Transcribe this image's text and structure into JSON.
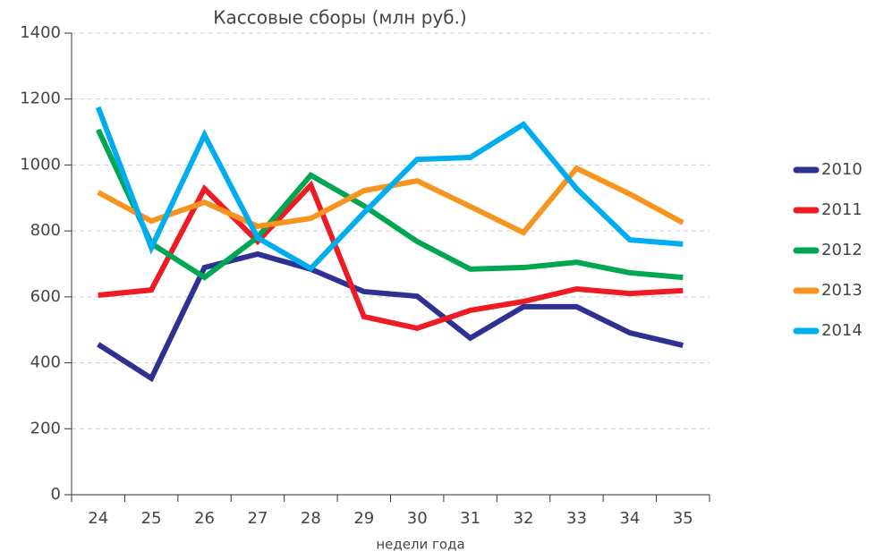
{
  "chart_data": {
    "type": "line",
    "title": "Кассовые сборы (млн руб.)",
    "x_label": "недели года",
    "categories": [
      "24",
      "25",
      "26",
      "27",
      "28",
      "29",
      "30",
      "31",
      "32",
      "33",
      "34",
      "35"
    ],
    "series": [
      {
        "name": "2010",
        "color": "#2e3192",
        "values": [
          456,
          353,
          689,
          730,
          684,
          616,
          602,
          475,
          570,
          570,
          491,
          453
        ]
      },
      {
        "name": "2011",
        "color": "#ed1c24",
        "values": [
          605,
          621,
          928,
          768,
          939,
          540,
          505,
          559,
          586,
          624,
          610,
          619
        ]
      },
      {
        "name": "2012",
        "color": "#00a651",
        "values": [
          1107,
          762,
          659,
          781,
          969,
          876,
          768,
          684,
          689,
          705,
          673,
          659
        ]
      },
      {
        "name": "2013",
        "color": "#f7941d",
        "values": [
          917,
          830,
          887,
          814,
          838,
          922,
          952,
          874,
          795,
          990,
          912,
          825
        ]
      },
      {
        "name": "2014",
        "color": "#00aeef",
        "values": [
          1175,
          749,
          1091,
          779,
          686,
          855,
          1017,
          1023,
          1123,
          928,
          773,
          760
        ]
      }
    ],
    "ylim": [
      0,
      1400
    ],
    "yticks": [
      0,
      200,
      400,
      600,
      800,
      1000,
      1200,
      1400
    ],
    "grid": true,
    "legend": "right"
  }
}
